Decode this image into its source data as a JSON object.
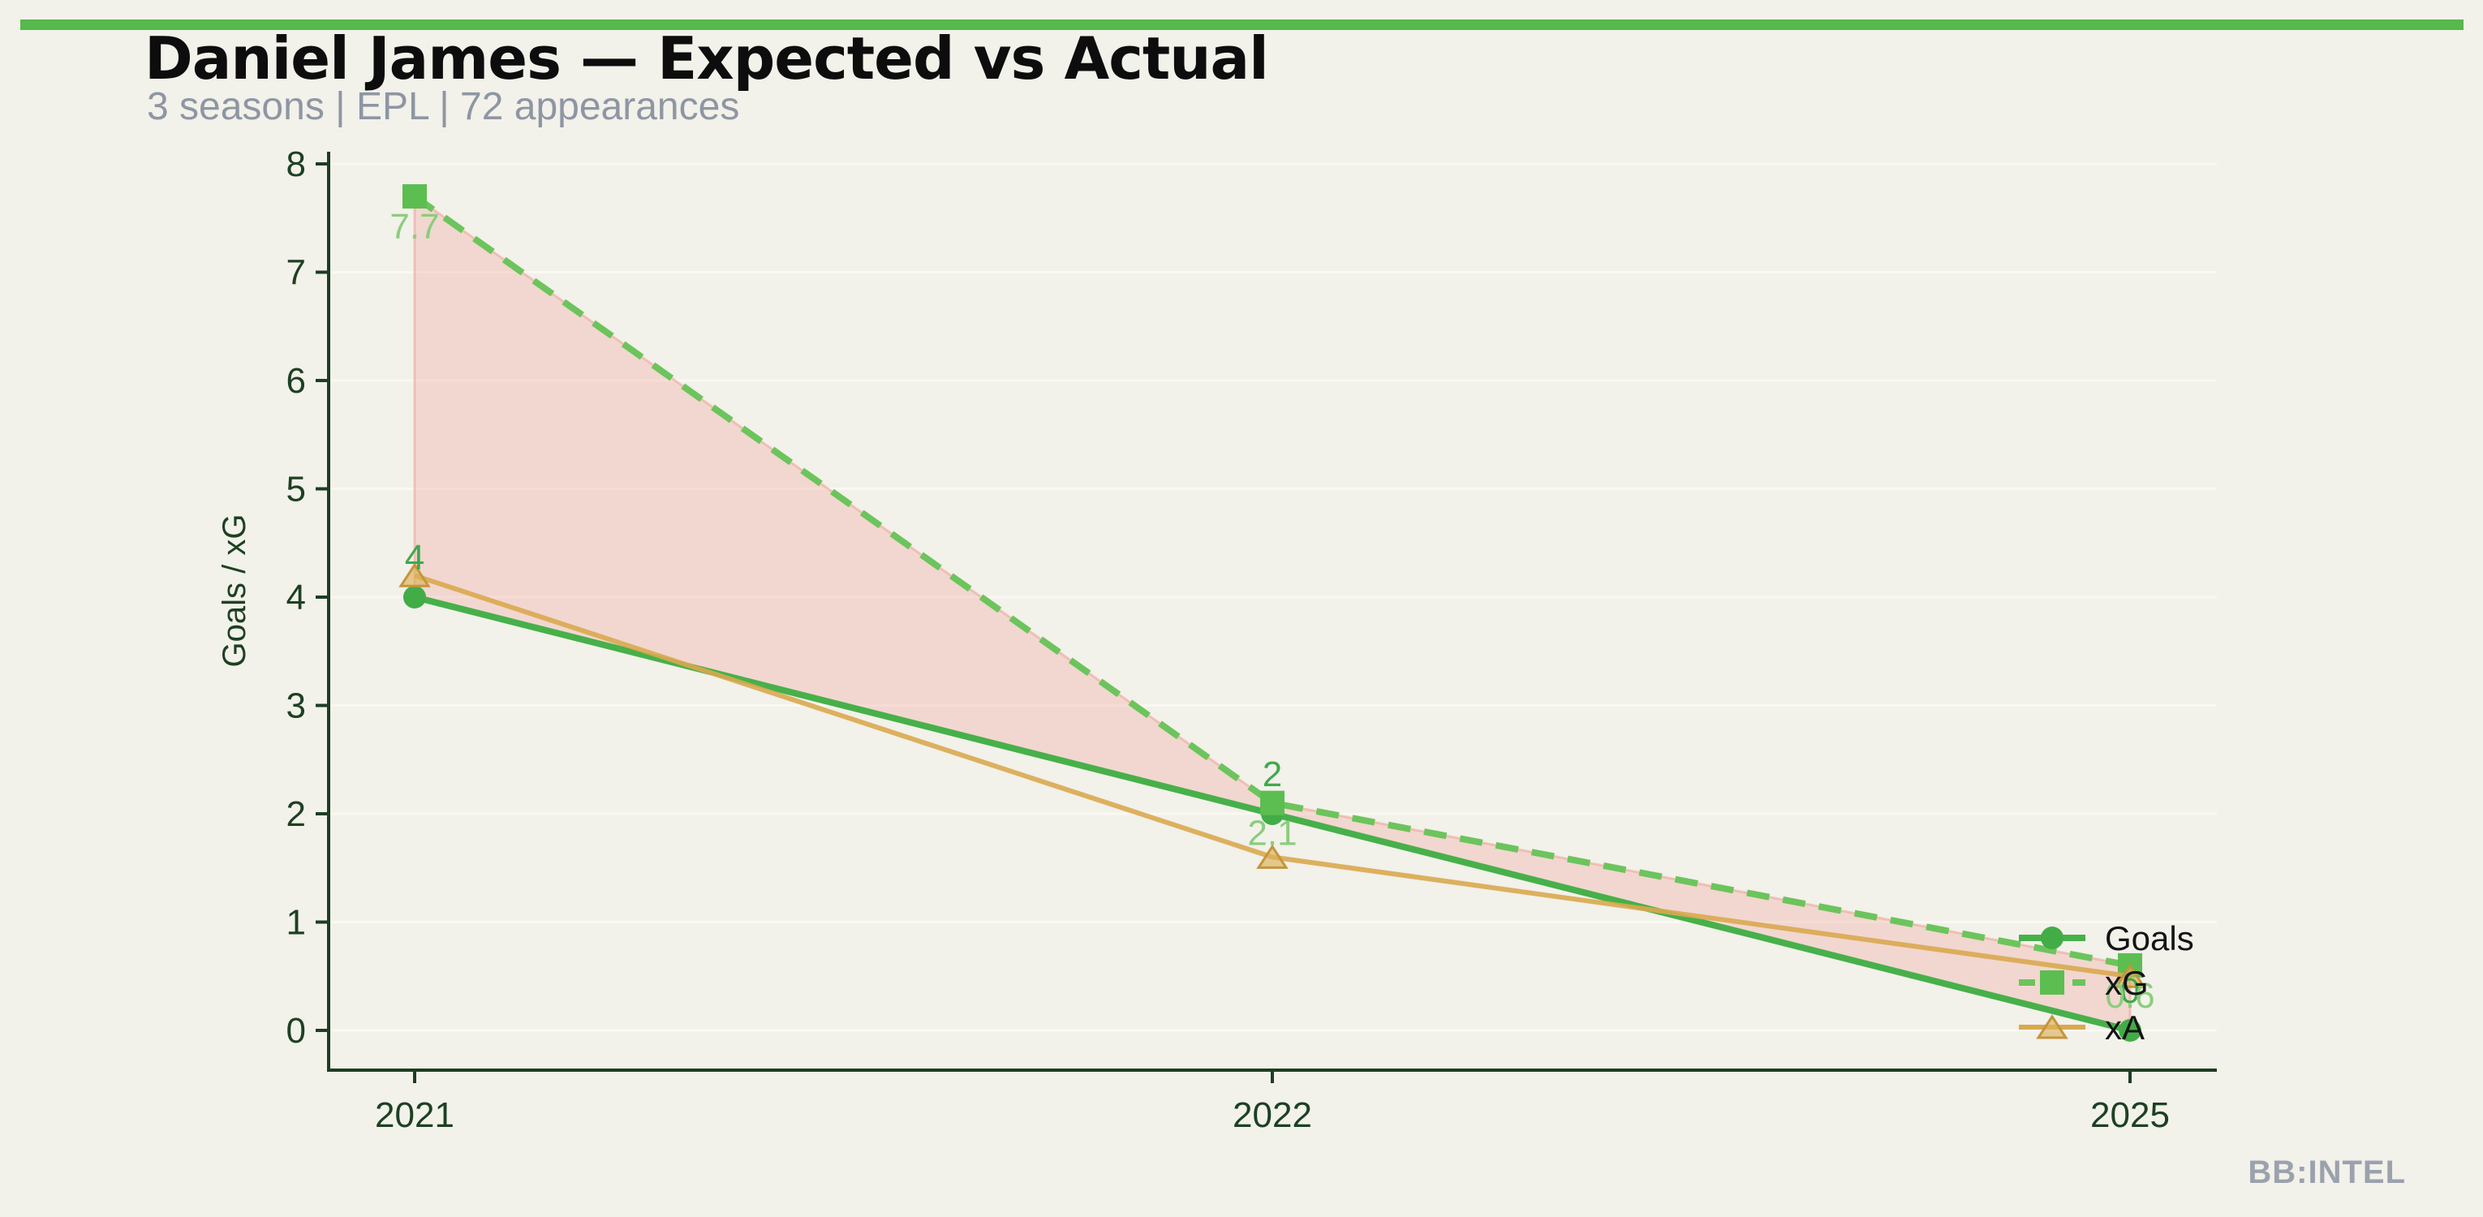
{
  "header": {
    "title": "Daniel James — Expected vs Actual",
    "subtitle": "3 seasons | EPL | 72 appearances"
  },
  "footer": {
    "watermark": "BB:INTEL"
  },
  "theme": {
    "background": "#f2f1ea",
    "accent_bar_color": "#57b84c",
    "title_color": "#0d0d0d",
    "subtitle_color": "#8e96a3",
    "watermark_color": "#9ba2ad",
    "axis_color": "#1c3e23",
    "tick_label_color": "#1d4023",
    "grid_color": "#faf8f2",
    "legend_text_color": "#141414"
  },
  "chart_data": {
    "type": "line",
    "title": "Daniel James — Expected vs Actual",
    "categories": [
      "2021",
      "2022",
      "2025"
    ],
    "series": [
      {
        "name": "Goals",
        "values": [
          4,
          2,
          0
        ],
        "point_labels": [
          "4",
          "2",
          "0"
        ],
        "label_side": "above",
        "color": "#47b04a",
        "marker_color": "#42ac47",
        "label_color": "#3fa94b",
        "marker": "circle",
        "line_style": "solid"
      },
      {
        "name": "xG",
        "values": [
          7.7,
          2.1,
          0.6
        ],
        "point_labels": [
          "7.7",
          "2.1",
          "0.6"
        ],
        "label_side": "below",
        "color": "#6cc45c",
        "marker_color": "#5cbe50",
        "label_color": "#8bcd7c",
        "marker": "square",
        "line_style": "dashed"
      },
      {
        "name": "xA",
        "values": [
          4.2,
          1.6,
          0.5
        ],
        "point_labels": [],
        "label_side": "none",
        "color": "#d9a84f",
        "marker_color": "#ddb059",
        "marker_edge_color": "#c3963c",
        "marker": "triangle",
        "line_style": "solid"
      }
    ],
    "fill_between": {
      "upper": "xG",
      "lower": "Goals",
      "color": "rgba(240,164,152,0.33)",
      "edge_color": "rgba(238,160,150,0.55)"
    },
    "xlabel": "",
    "ylabel": "Goals / xG",
    "ylim": [
      0,
      8
    ],
    "yticks": [
      "0",
      "1",
      "2",
      "3",
      "4",
      "5",
      "6",
      "7",
      "8"
    ],
    "grid": true,
    "legend": {
      "position": "right-inline",
      "entries": [
        "Goals",
        "xG",
        "xA"
      ]
    }
  }
}
